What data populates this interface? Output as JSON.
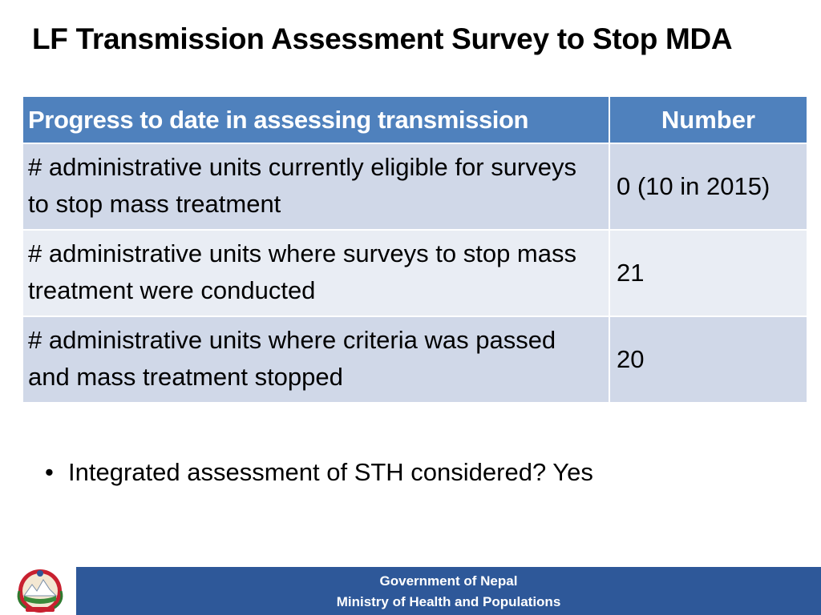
{
  "title": "LF Transmission Assessment Survey to Stop MDA",
  "table": {
    "headers": [
      "Progress to date in assessing transmission",
      "Number"
    ],
    "rows": [
      {
        "label": "# administrative units currently eligible for surveys to stop mass treatment",
        "value": "0 (10 in 2015)"
      },
      {
        "label": "# administrative units where surveys to stop mass treatment were conducted",
        "value": "21"
      },
      {
        "label": "# administrative units where criteria was passed and mass treatment stopped",
        "value": "20"
      }
    ]
  },
  "bullet": {
    "symbol": "•",
    "text": "Integrated assessment of STH considered?  Yes"
  },
  "footer": {
    "line1": "Government of Nepal",
    "line2": "Ministry of Health and Populations",
    "emblem_icon": "nepal-government-emblem-icon"
  },
  "colors": {
    "header_bg": "#4f81bd",
    "row_dark": "#d0d8e8",
    "row_light": "#e9edf4",
    "footer_bg": "#2e5899"
  }
}
